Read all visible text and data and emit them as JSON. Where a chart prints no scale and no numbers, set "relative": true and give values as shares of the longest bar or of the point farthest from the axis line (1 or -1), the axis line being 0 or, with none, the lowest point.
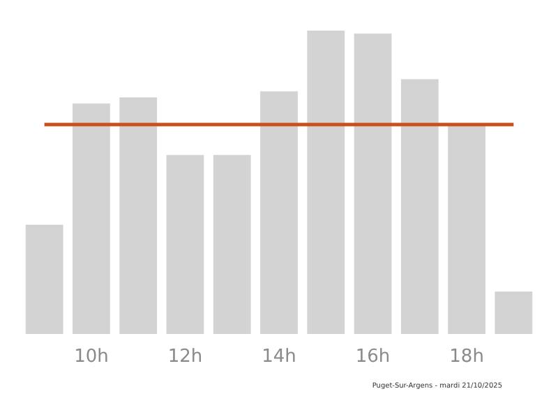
{
  "chart_data": {
    "type": "bar",
    "relative": true,
    "categories": [
      null,
      "10h",
      null,
      "12h",
      null,
      "14h",
      null,
      "16h",
      null,
      "18h",
      null
    ],
    "values": [
      0.36,
      0.76,
      0.78,
      0.59,
      0.59,
      0.8,
      1,
      0.99,
      0.84,
      0.69,
      0.14
    ],
    "color": "#d3d3d3",
    "ref_lines": [
      {
        "axis": "y",
        "value": 0.69,
        "color": "#c8501e"
      }
    ],
    "annotations": [
      "Puget-Sur-Argens - mardi 21/10/2025"
    ],
    "grid": false
  }
}
